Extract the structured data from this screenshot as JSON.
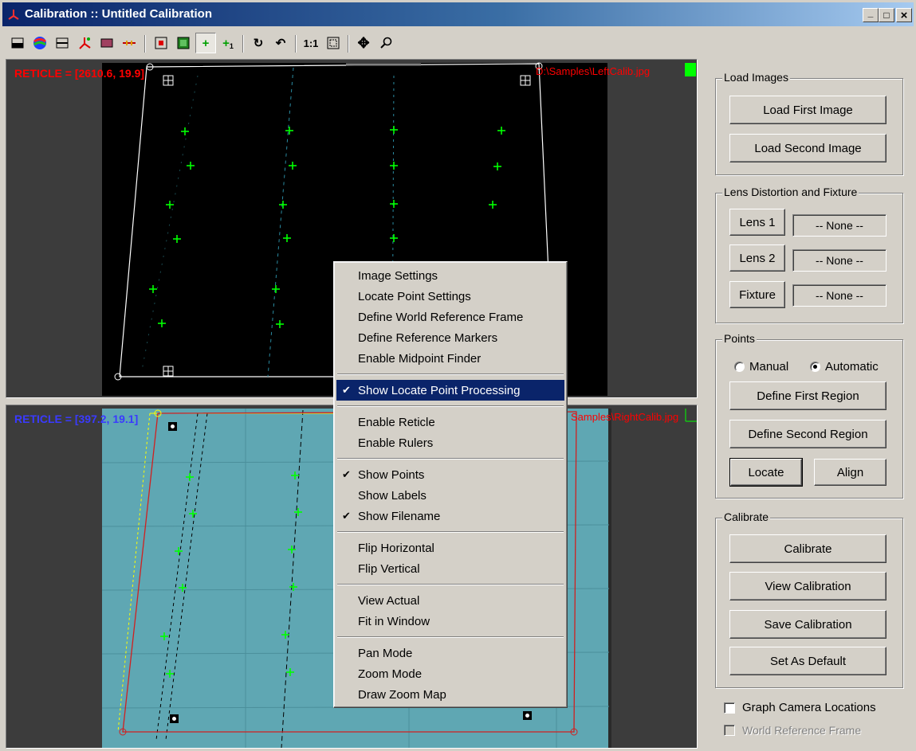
{
  "window": {
    "title": "Calibration :: Untitled Calibration",
    "minimize": "_",
    "maximize": "□",
    "close": "×"
  },
  "toolbar": {
    "tools": [
      {
        "name": "single-view-icon"
      },
      {
        "name": "color-palette-icon"
      },
      {
        "name": "split-view-icon"
      },
      {
        "name": "axis-icon"
      },
      {
        "name": "image-icon"
      },
      {
        "name": "ruler-icon"
      },
      {
        "name": "reticle-icon"
      },
      {
        "name": "region-icon"
      },
      {
        "name": "add-point-icon"
      },
      {
        "name": "add-labeled-point-icon"
      },
      {
        "name": "rotate-icon"
      },
      {
        "name": "undo-icon"
      },
      {
        "name": "view-actual-icon",
        "label": "1:1"
      },
      {
        "name": "fit-window-icon"
      },
      {
        "name": "pan-icon"
      },
      {
        "name": "zoom-icon"
      }
    ]
  },
  "top_pane": {
    "reticle": "RETICLE = [2610.6, 19.9]",
    "filename": "D:\\Samples\\LeftCalib.jpg",
    "reticle_color": "#ff0000"
  },
  "bottom_pane": {
    "reticle": "RETICLE = [397.2, 19.1]",
    "filename": "Samples\\RightCalib.jpg",
    "reticle_color": "#3a3aff"
  },
  "context_menu": {
    "items": [
      {
        "label": "Image Settings",
        "checked": false
      },
      {
        "label": "Locate Point Settings",
        "checked": false
      },
      {
        "label": "Define World Reference Frame",
        "checked": false
      },
      {
        "label": "Define Reference Markers",
        "checked": false
      },
      {
        "label": "Enable Midpoint Finder",
        "checked": false
      },
      {
        "label": "Show Locate Point Processing",
        "checked": true,
        "selected": true
      },
      {
        "label": "Enable Reticle",
        "checked": false
      },
      {
        "label": "Enable Rulers",
        "checked": false
      },
      {
        "label": "Show Points",
        "checked": true
      },
      {
        "label": "Show Labels",
        "checked": false
      },
      {
        "label": "Show Filename",
        "checked": true
      },
      {
        "label": "Flip Horizontal",
        "checked": false
      },
      {
        "label": "Flip Vertical",
        "checked": false
      },
      {
        "label": "View Actual",
        "checked": false
      },
      {
        "label": "Fit in Window",
        "checked": false
      },
      {
        "label": "Pan Mode",
        "checked": false
      },
      {
        "label": "Zoom Mode",
        "checked": false
      },
      {
        "label": "Draw Zoom Map",
        "checked": false
      }
    ],
    "check_glyph": "✔"
  },
  "load_images": {
    "label": "Load Images",
    "first": "Load First Image",
    "second": "Load Second Image"
  },
  "lens": {
    "label": "Lens Distortion and Fixture",
    "lens1": "Lens 1",
    "lens1_value": "-- None --",
    "lens2": "Lens 2",
    "lens2_value": "-- None --",
    "fixture": "Fixture",
    "fixture_value": "-- None --"
  },
  "points": {
    "label": "Points",
    "manual": "Manual",
    "automatic": "Automatic",
    "mode": "automatic",
    "define_first": "Define First Region",
    "define_second": "Define Second Region",
    "locate": "Locate",
    "align": "Align"
  },
  "calibrate": {
    "label": "Calibrate",
    "calibrate": "Calibrate",
    "view": "View Calibration",
    "save": "Save Calibration",
    "set_default": "Set As Default"
  },
  "options": {
    "graph_camera": "Graph Camera Locations",
    "graph_camera_checked": false,
    "world_frame": "World Reference Frame",
    "world_frame_checked": false,
    "world_frame_enabled": false
  }
}
